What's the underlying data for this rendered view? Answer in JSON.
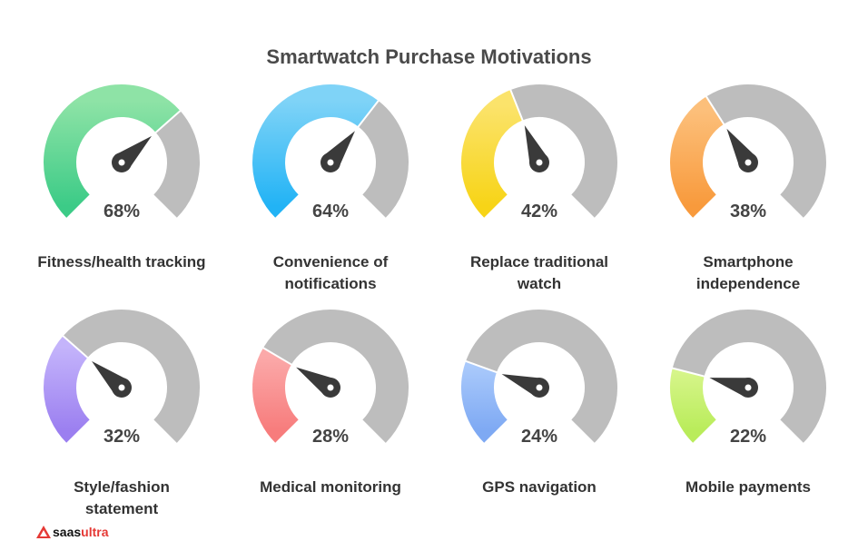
{
  "title": "Smartwatch Purchase Motivations",
  "logo": {
    "prefix": "saas",
    "suffix": "ultra"
  },
  "colors": {
    "track": "#bdbdbd",
    "needle": "#3a3a3a"
  },
  "chart_data": {
    "type": "gauge",
    "title": "Smartwatch Purchase Motivations",
    "unit": "%",
    "range": [
      0,
      100
    ],
    "items": [
      {
        "label": "Fitness/health tracking",
        "value": 68,
        "display": "68%",
        "color_start": "#8ee3a6",
        "color_end": "#3ccb87"
      },
      {
        "label": "Convenience of\nnotifications",
        "value": 64,
        "display": "64%",
        "color_start": "#7fd3f7",
        "color_end": "#22b3f5"
      },
      {
        "label": "Replace traditional\nwatch",
        "value": 42,
        "display": "42%",
        "color_start": "#fbe36b",
        "color_end": "#f7d417"
      },
      {
        "label": "Smartphone\nindependence",
        "value": 38,
        "display": "38%",
        "color_start": "#fcbf7a",
        "color_end": "#f89a3c"
      },
      {
        "label": "Style/fashion\nstatement",
        "value": 32,
        "display": "32%",
        "color_start": "#c4b4fb",
        "color_end": "#9b7ff0"
      },
      {
        "label": "Medical monitoring",
        "value": 28,
        "display": "28%",
        "color_start": "#fba9a9",
        "color_end": "#f77c7c"
      },
      {
        "label": "GPS navigation",
        "value": 24,
        "display": "24%",
        "color_start": "#a9c9fb",
        "color_end": "#7ea9f3"
      },
      {
        "label": "Mobile payments",
        "value": 22,
        "display": "22%",
        "color_start": "#d6f58a",
        "color_end": "#b9ec5a"
      }
    ]
  }
}
